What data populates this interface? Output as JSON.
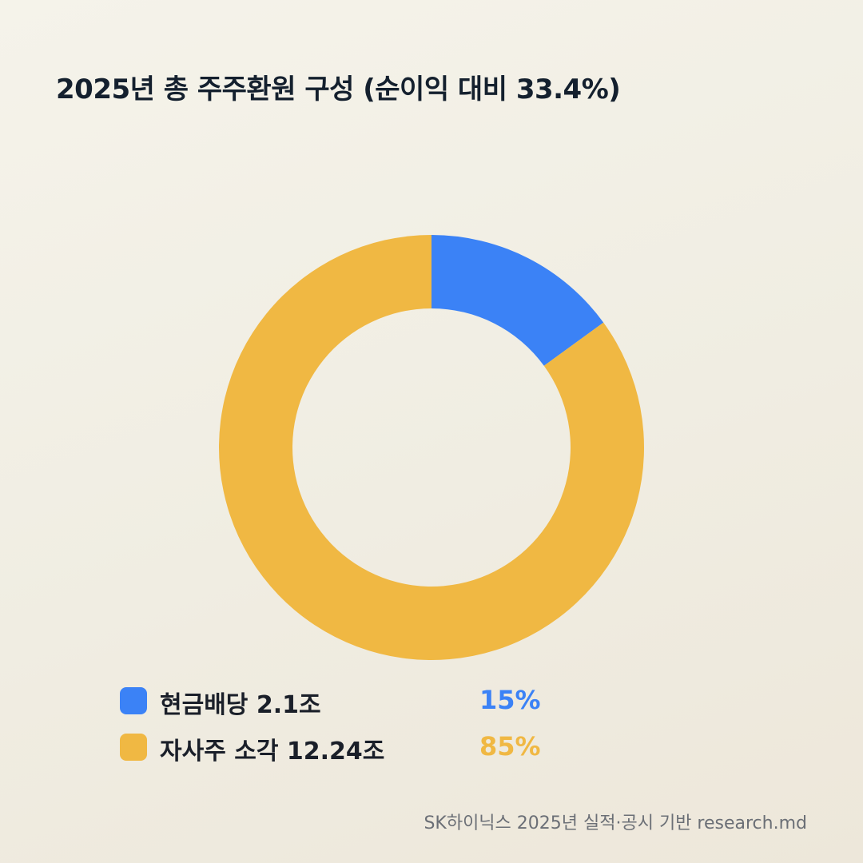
{
  "chart_data": {
    "type": "pie",
    "title": "2025년 총 주주환원 구성 (순이익 대비 33.4%)",
    "series": [
      {
        "name": "현금배당 2.1조",
        "value": 15,
        "label": "15%",
        "color": "#3b82f6"
      },
      {
        "name": "자사주 소각 12.24조",
        "value": 85,
        "label": "85%",
        "color": "#f0b843"
      }
    ],
    "legend_position": "bottom",
    "style": "donut"
  },
  "footer": {
    "source": "SK하이닉스 2025년 실적·공시 기반 research.md"
  }
}
